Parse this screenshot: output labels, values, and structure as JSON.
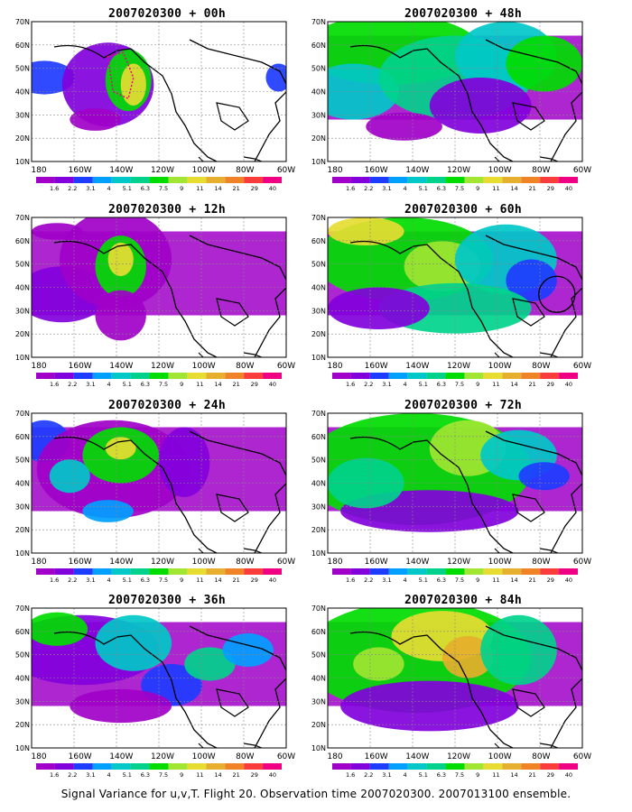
{
  "colors": {
    "ocean_missing": "#ffffff",
    "coast": "#000000",
    "grid": "#888888",
    "levels": [
      "#a000c8",
      "#8200dc",
      "#1e3cff",
      "#00a0ff",
      "#00c8c8",
      "#00d28c",
      "#00dc00",
      "#a0e632",
      "#e6dc32",
      "#e6af2d",
      "#f08228",
      "#fa3c3c",
      "#f00082"
    ]
  },
  "axes": {
    "lon_ticks": [
      "180",
      "160W",
      "140W",
      "120W",
      "100W",
      "80W",
      "60W"
    ],
    "lat_ticks": [
      "10N",
      "20N",
      "30N",
      "40N",
      "50N",
      "60N",
      "70N"
    ]
  },
  "colorbar_labels": [
    "1.6",
    "2.2",
    "3.1",
    "4",
    "5.1",
    "6.3",
    "7.5",
    "9",
    "11",
    "14",
    "21",
    "29",
    "40"
  ],
  "panels": [
    {
      "title": "2007020300 + 00h"
    },
    {
      "title": "2007020300 + 48h"
    },
    {
      "title": "2007020300 + 12h"
    },
    {
      "title": "2007020300 + 60h"
    },
    {
      "title": "2007020300 + 24h"
    },
    {
      "title": "2007020300 + 72h"
    },
    {
      "title": "2007020300 + 36h"
    },
    {
      "title": "2007020300 + 84h"
    }
  ],
  "caption": "Signal Variance for u,v,T. Flight 20. Observation time 2007020300. 2007013100 ensemble."
}
